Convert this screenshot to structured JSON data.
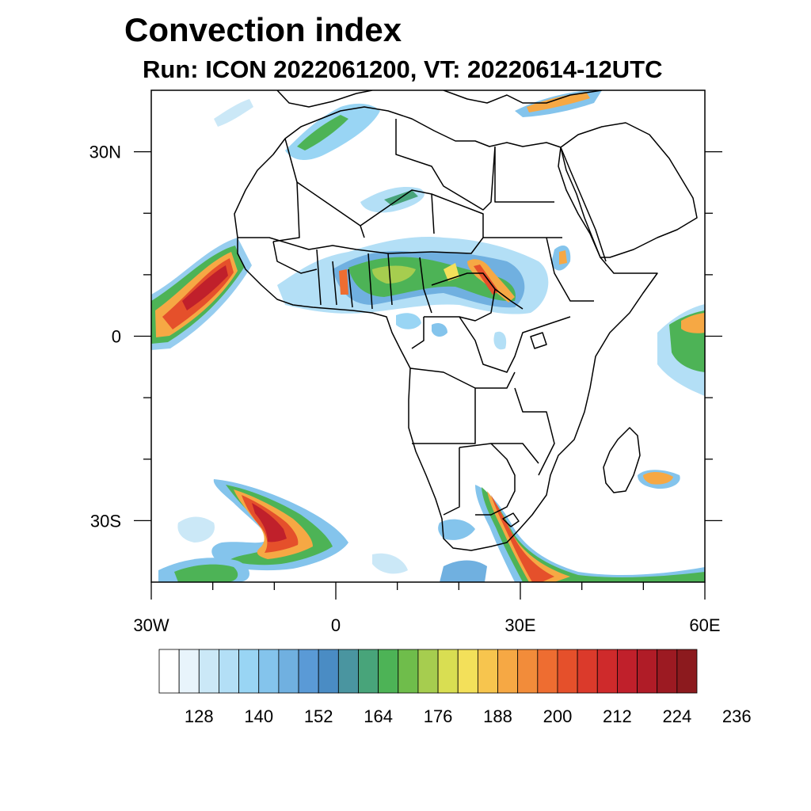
{
  "title": "Convection index",
  "subtitle": "Run: ICON 2022061200,  VT: 20220614-12UTC",
  "map": {
    "lon_range": [
      -30,
      60
    ],
    "lat_range": [
      -40,
      40
    ],
    "lon_ticks": [
      {
        "value": -30,
        "label": "30W"
      },
      {
        "value": 0,
        "label": "0"
      },
      {
        "value": 30,
        "label": "30E"
      },
      {
        "value": 60,
        "label": "60E"
      }
    ],
    "lat_ticks": [
      {
        "value": 30,
        "label": "30N"
      },
      {
        "value": 0,
        "label": "0"
      },
      {
        "value": -30,
        "label": "30S"
      }
    ],
    "minor_lon_ticks": [
      -20,
      -10,
      10,
      20,
      40,
      50
    ],
    "minor_lat_ticks": [
      20,
      10,
      -10,
      -20
    ]
  },
  "colorbar": {
    "colors": [
      "#ffffff",
      "#e8f4fb",
      "#cbe8f7",
      "#b3dff6",
      "#99d5f4",
      "#84c4ec",
      "#70b0e0",
      "#5a9ad6",
      "#4a8cc4",
      "#4a95a0",
      "#48a47a",
      "#4db356",
      "#6fbd4b",
      "#a6cd4f",
      "#d9de52",
      "#f3e05a",
      "#f7c54e",
      "#f6a844",
      "#f28c3a",
      "#ee6d31",
      "#e5502b",
      "#db3a2b",
      "#cf2a2b",
      "#c0202b",
      "#b01c27",
      "#9c1a22",
      "#8c1a1e"
    ],
    "labels": [
      "128",
      "140",
      "152",
      "164",
      "176",
      "188",
      "200",
      "212",
      "224",
      "236"
    ]
  }
}
